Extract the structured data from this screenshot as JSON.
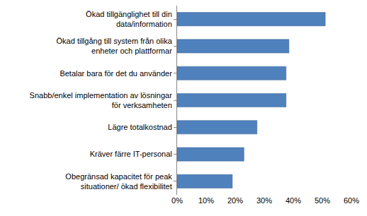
{
  "chart_data": {
    "type": "bar",
    "orientation": "horizontal",
    "categories": [
      "Ökad tillgänglighet till din data/information",
      "Ökad tillgång till system från olika enheter och plattformar",
      "Betalar bara för det du använder",
      "Snabb/enkel implementation av lösningar för verksamheten",
      "Lägre totalkostnad",
      "Kräver färre IT-personal",
      "Obegränsad kapacitet för peak situationer/ ökad flexibilitet"
    ],
    "values": [
      51,
      38.5,
      37.5,
      37.5,
      27.5,
      23,
      19
    ],
    "color": "#4f81bd",
    "xlim": [
      0,
      60
    ],
    "xticks": [
      {
        "value": 0,
        "label": "0%"
      },
      {
        "value": 10,
        "label": "10%"
      },
      {
        "value": 20,
        "label": "20%"
      },
      {
        "value": 30,
        "label": "30%"
      },
      {
        "value": 40,
        "label": "40%"
      },
      {
        "value": 50,
        "label": "50%"
      },
      {
        "value": 60,
        "label": "60%"
      }
    ],
    "grid": false
  }
}
